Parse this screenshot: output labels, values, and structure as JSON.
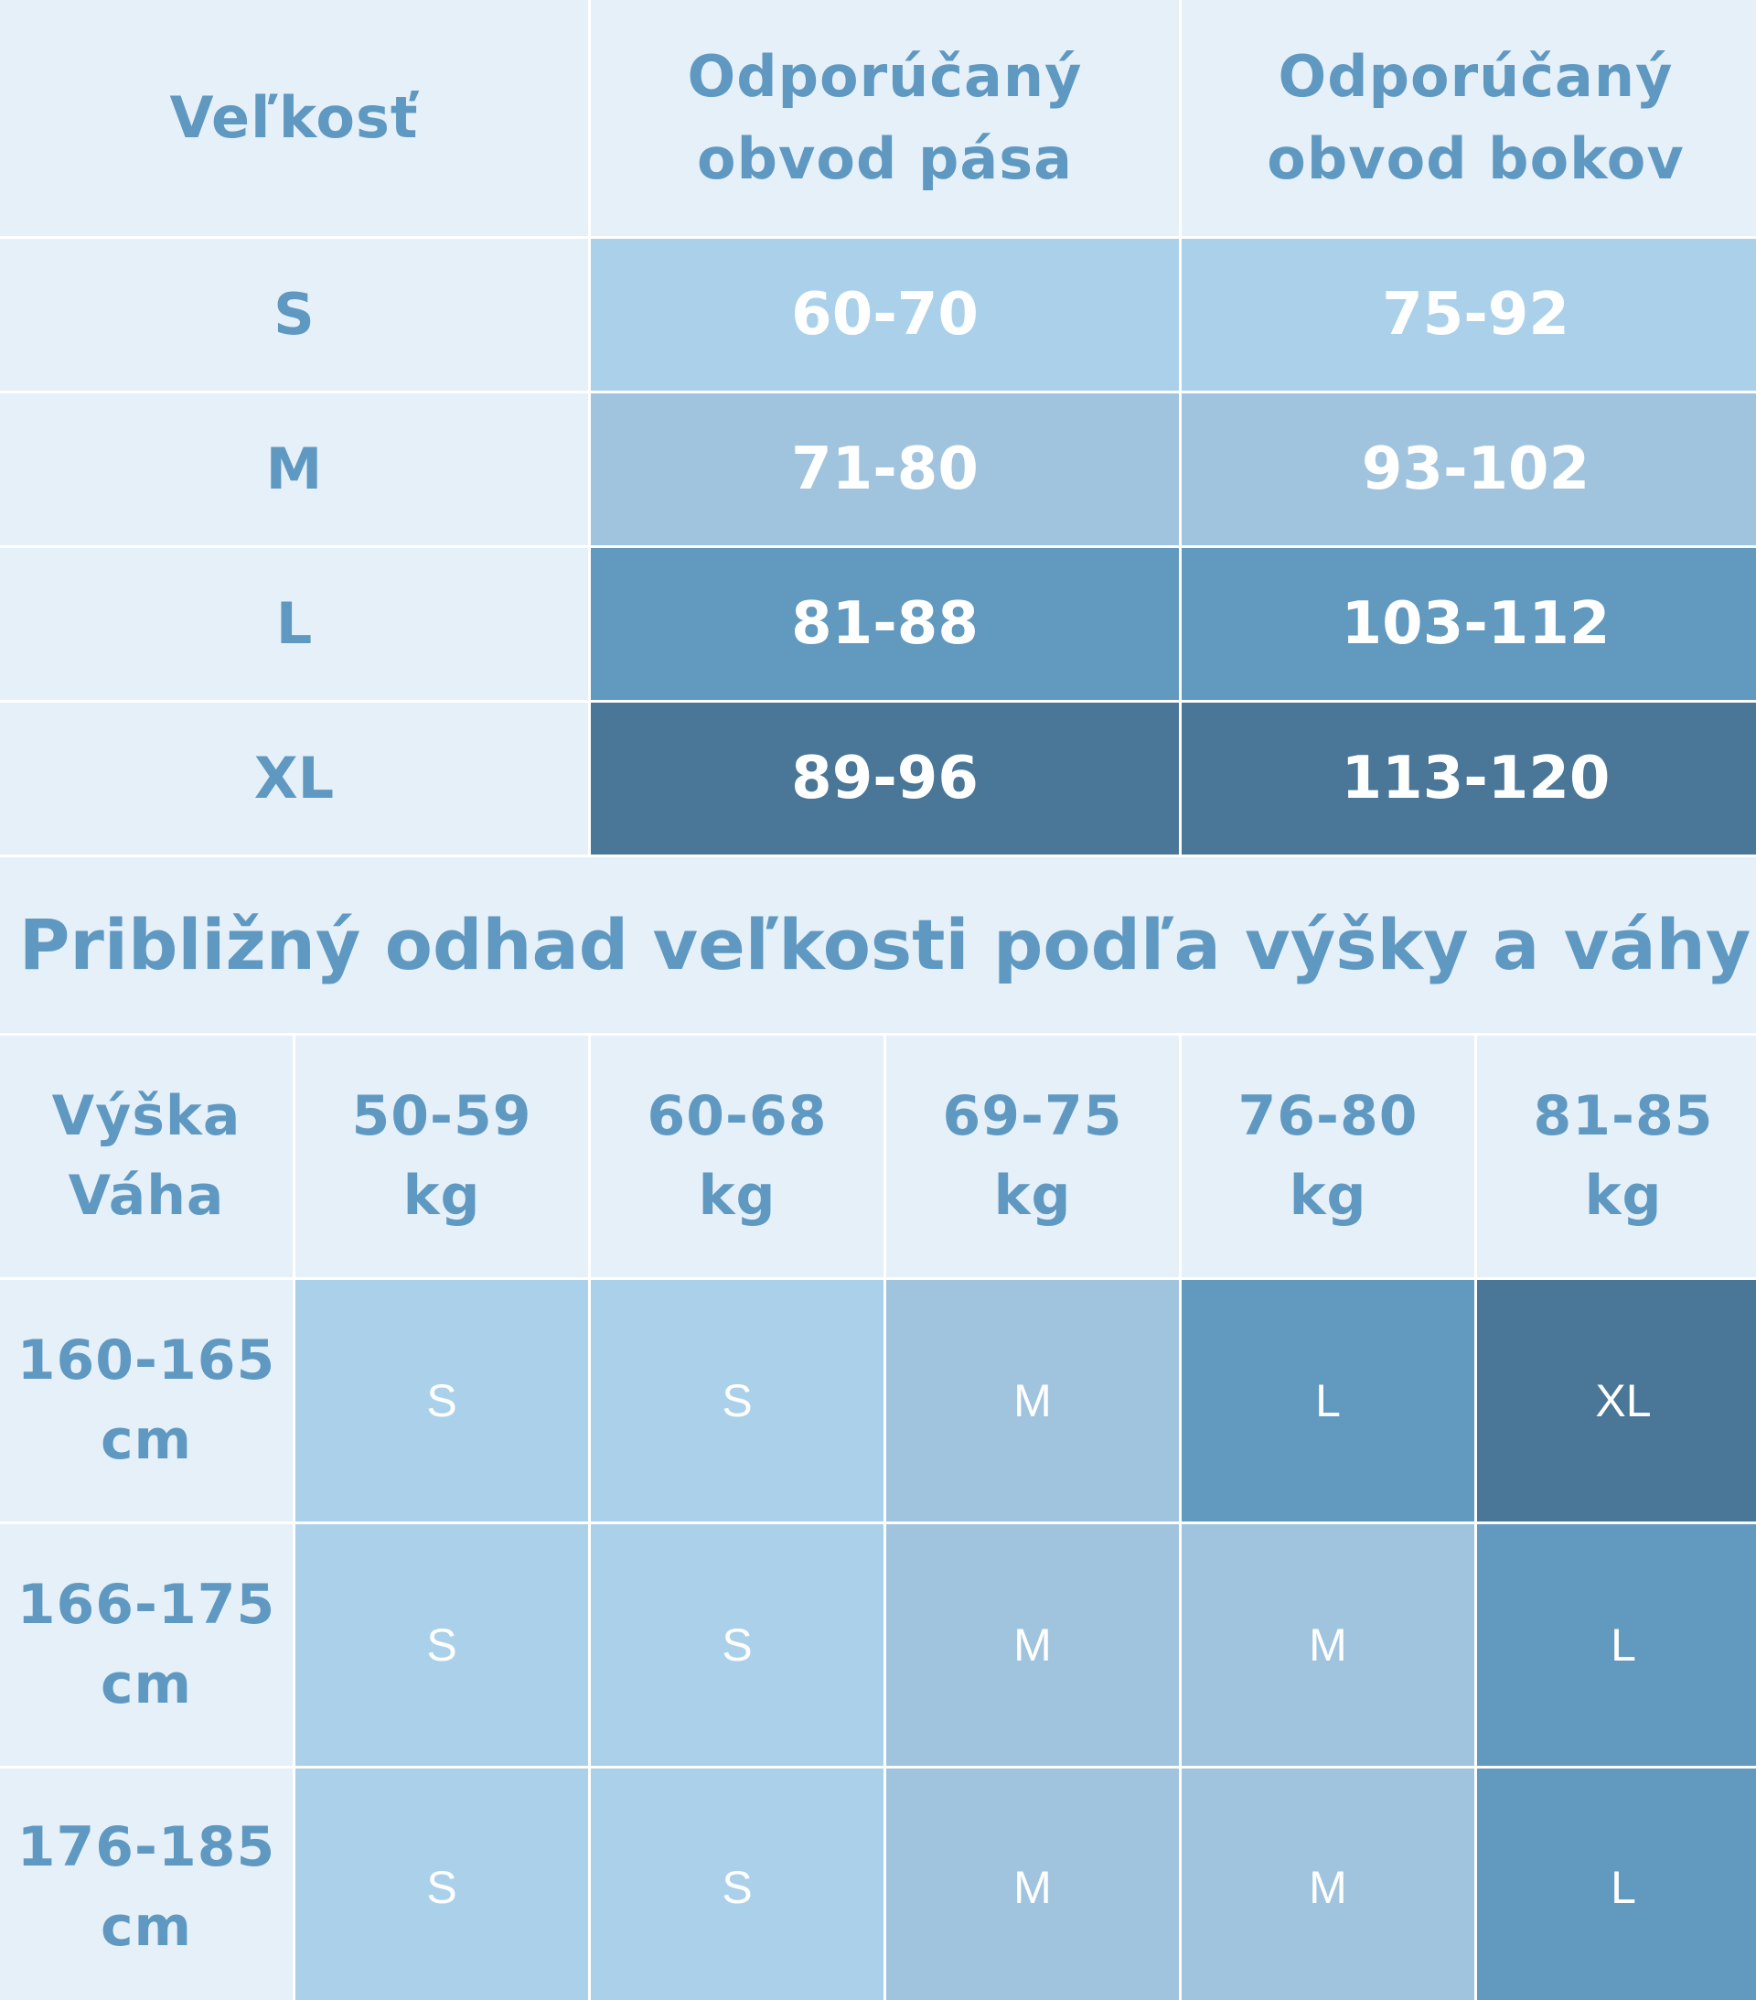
{
  "size_table": {
    "headers": [
      "Veľkosť",
      "Odporúčaný obvod pása",
      "Odporúčaný obvod bokov"
    ],
    "rows": [
      {
        "size": "S",
        "waist": "60-70",
        "hips": "75-92",
        "level": "s"
      },
      {
        "size": "M",
        "waist": "71-80",
        "hips": "93-102",
        "level": "m"
      },
      {
        "size": "L",
        "waist": "81-88",
        "hips": "103-112",
        "level": "l"
      },
      {
        "size": "XL",
        "waist": "89-96",
        "hips": "113-120",
        "level": "xl"
      }
    ]
  },
  "estimate_title": "Približný odhad veľkosti podľa výšky a váhy",
  "estimate_table": {
    "corner": [
      "Výška",
      "Váha"
    ],
    "weights": [
      "50-59 kg",
      "60-68 kg",
      "69-75 kg",
      "76-80 kg",
      "81-85 kg"
    ],
    "rows": [
      {
        "height": "160-165 cm",
        "sizes": [
          "S",
          "S",
          "M",
          "L",
          "XL"
        ]
      },
      {
        "height": "166-175 cm",
        "sizes": [
          "S",
          "S",
          "M",
          "M",
          "L"
        ]
      },
      {
        "height": "176-185 cm",
        "sizes": [
          "S",
          "S",
          "M",
          "M",
          "L"
        ]
      }
    ]
  },
  "colors": {
    "header_bg": "#e6f0f8",
    "header_text": "#5f99c2",
    "S": "#abd1ea",
    "M": "#a0c4de",
    "L": "#6199bf",
    "XL": "#4a7797"
  }
}
